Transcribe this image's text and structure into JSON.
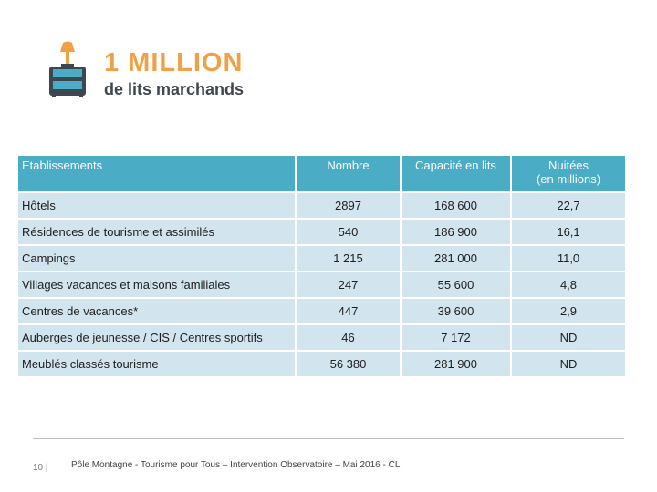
{
  "logo": {
    "line1": "1 MILLION",
    "line2": "de lits marchands",
    "colors": {
      "orange": "#f0a146",
      "dark": "#3e4650",
      "teal": "#4bacc6"
    },
    "icon": "lamp-suitcase-icon"
  },
  "table": {
    "headers": [
      "Etablissements",
      "Nombre",
      "Capacité en lits",
      "Nuitées\n(en millions)"
    ],
    "rows": [
      {
        "label": "Hôtels",
        "nombre": "2897",
        "capacite": "168 600",
        "nuitees": "22,7"
      },
      {
        "label": "Résidences de tourisme et assimilés",
        "nombre": "540",
        "capacite": "186 900",
        "nuitees": "16,1"
      },
      {
        "label": "Campings",
        "nombre": "1 215",
        "capacite": "281 000",
        "nuitees": "11,0"
      },
      {
        "label": "Villages vacances et maisons familiales",
        "nombre": "247",
        "capacite": "55 600",
        "nuitees": "4,8"
      },
      {
        "label": "Centres de vacances*",
        "nombre": "447",
        "capacite": "39 600",
        "nuitees": "2,9"
      },
      {
        "label": "Auberges de jeunesse / CIS / Centres sportifs",
        "nombre": "46",
        "capacite": "7 172",
        "nuitees": "ND"
      },
      {
        "label": "Meublés classés tourisme",
        "nombre": "56 380",
        "capacite": "281 900",
        "nuitees": "ND"
      }
    ],
    "colors": {
      "header_bg": "#4bacc6",
      "cell_bg": "#d2e4ed"
    }
  },
  "footer": {
    "page_number": "10 |",
    "text": "Pôle Montagne - Tourisme pour Tous – Intervention Observatoire – Mai 2016 - CL"
  }
}
